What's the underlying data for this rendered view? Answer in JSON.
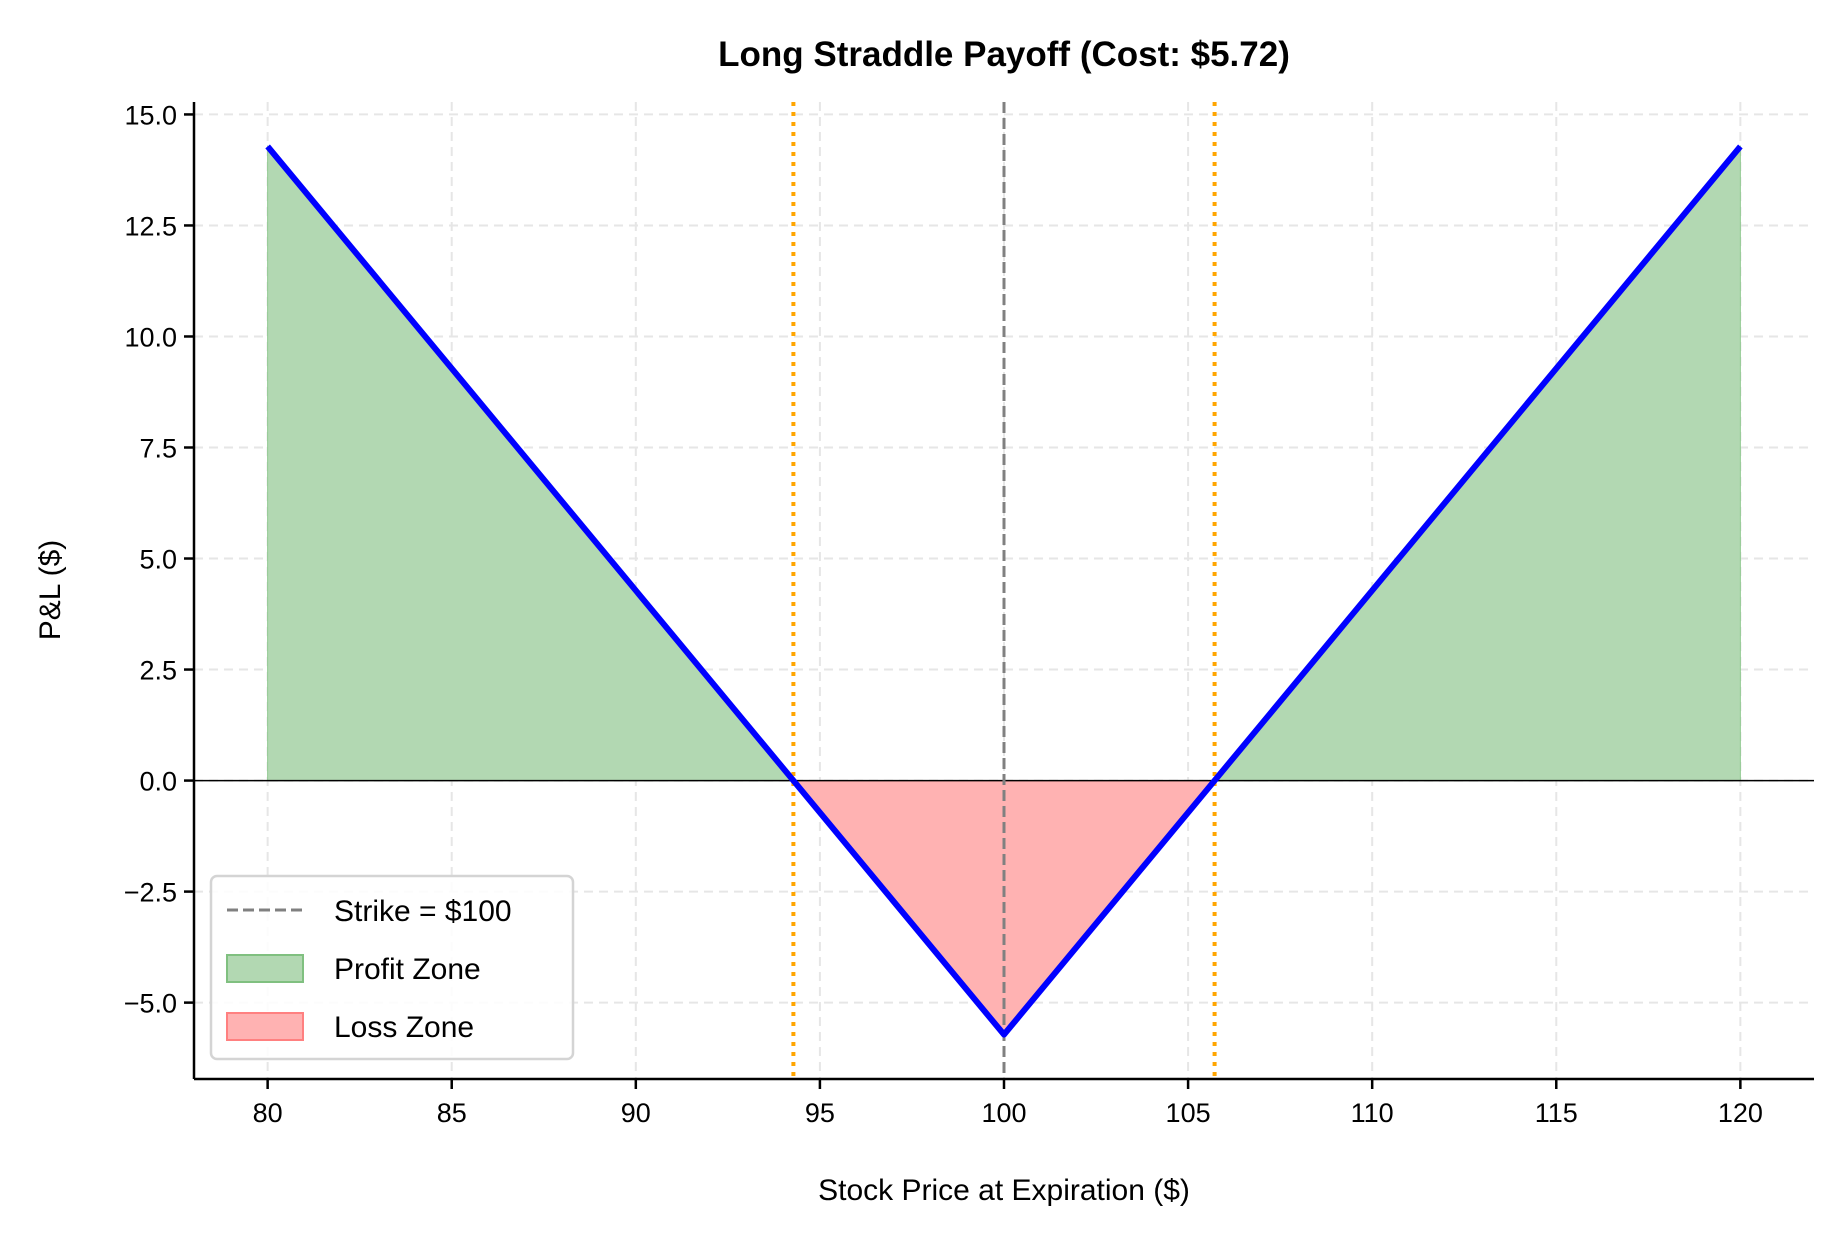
{
  "chart_data": {
    "type": "line",
    "title": "Long Straddle Payoff (Cost: $5.72)",
    "xlabel": "Stock Price at Expiration ($)",
    "ylabel": "P&L ($)",
    "xlim": [
      78,
      122
    ],
    "ylim": [
      -6.72,
      15.28
    ],
    "xticks": [
      80,
      85,
      90,
      95,
      100,
      105,
      110,
      115,
      120
    ],
    "xtick_labels": [
      "80",
      "85",
      "90",
      "95",
      "100",
      "105",
      "110",
      "115",
      "120"
    ],
    "yticks": [
      -5,
      -2.5,
      0,
      2.5,
      5,
      7.5,
      10,
      12.5,
      15
    ],
    "ytick_labels": [
      "−5.0",
      "−2.5",
      "0.0",
      "2.5",
      "5.0",
      "7.5",
      "10.0",
      "12.5",
      "15.0"
    ],
    "grid": true,
    "strike": 100,
    "cost": 5.72,
    "breakevens": [
      94.28,
      105.72
    ],
    "series": [
      {
        "x": [
          80,
          100,
          120
        ],
        "y": [
          14.28,
          -5.72,
          14.28
        ],
        "color": "#0000ff"
      }
    ],
    "legend": {
      "placement": "lower-left",
      "entries": [
        {
          "label": "Strike = $100",
          "kind": "dashed-line",
          "color": "#808080"
        },
        {
          "label": "Profit Zone",
          "kind": "patch",
          "color": "#008000"
        },
        {
          "label": "Loss Zone",
          "kind": "patch",
          "color": "#ff0000"
        }
      ]
    },
    "colors": {
      "profit": "#b2d8b2",
      "loss": "#ffb2b2",
      "breakeven": "#ffa500",
      "strike": "#808080",
      "payoff": "#0000ff"
    }
  }
}
